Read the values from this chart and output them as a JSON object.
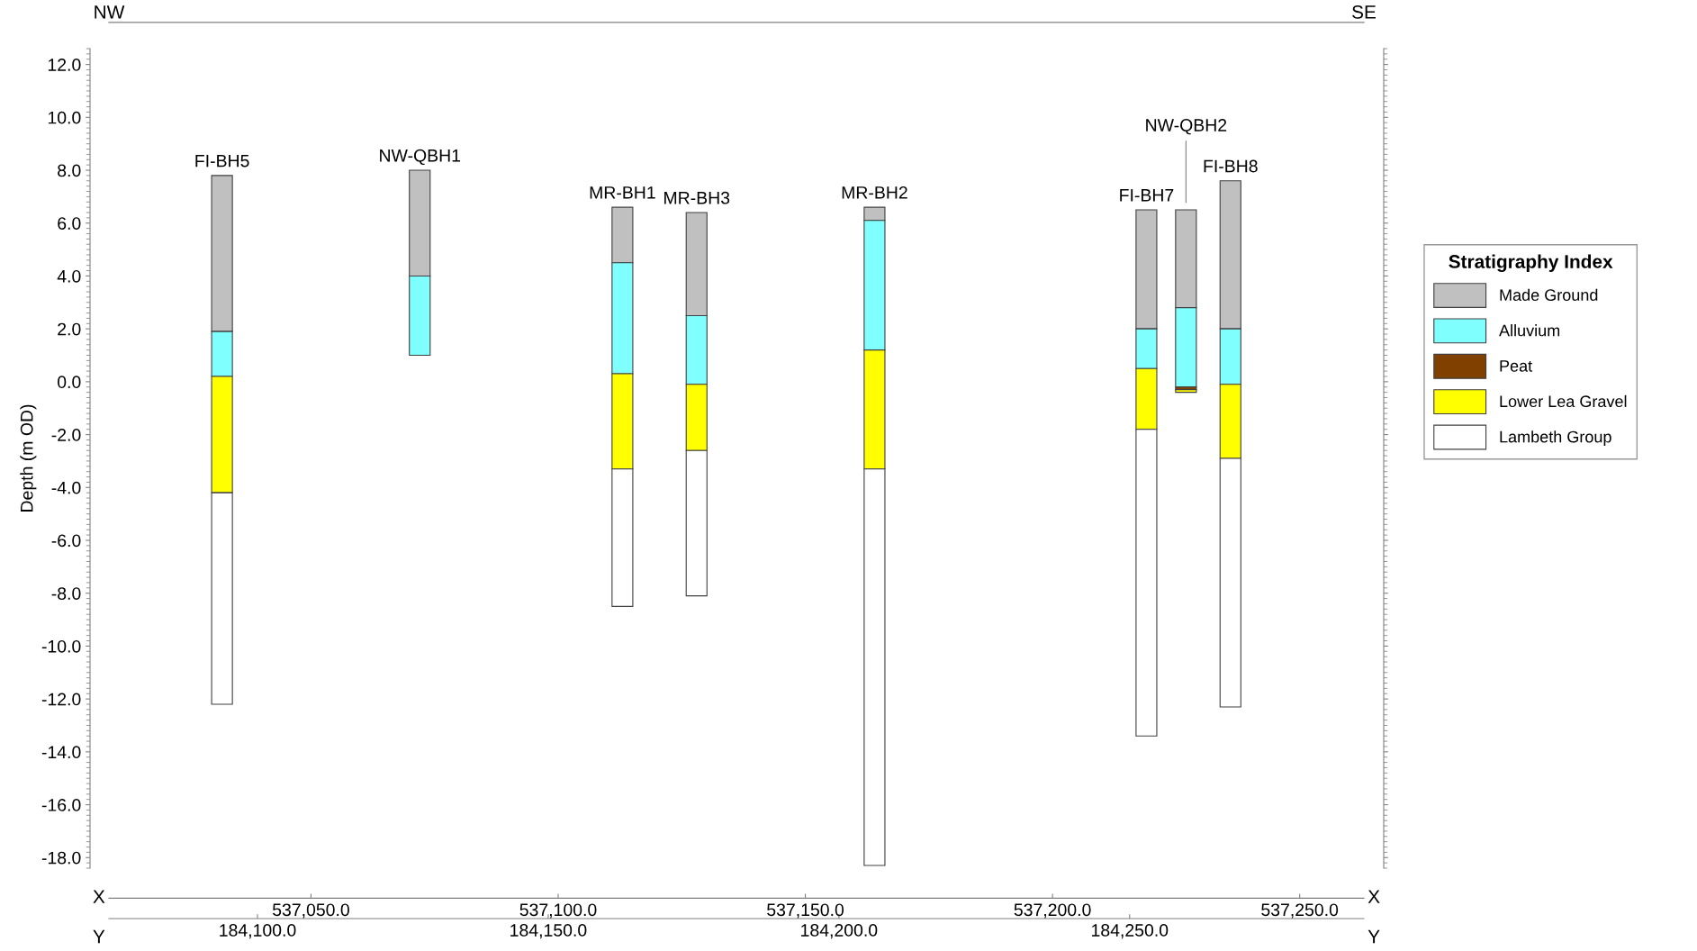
{
  "chart_data": {
    "type": "bar",
    "ylabel": "Depth (m OD)",
    "xlabel": "X",
    "x2label": "Y",
    "x": [
      537032,
      537072,
      537113,
      537128,
      537164,
      537219,
      537227,
      537236
    ],
    "series": [
      {
        "name": "Made Ground",
        "color": "#c0c0c0",
        "base": [
          1.9,
          4.0,
          4.5,
          2.5,
          6.1,
          2.0,
          2.8,
          2.0
        ],
        "values": [
          5.9,
          4.0,
          2.1,
          3.9,
          0.5,
          4.5,
          3.7,
          5.6
        ]
      },
      {
        "name": "Alluvium",
        "color": "#80ffff",
        "base": [
          0.2,
          1.0,
          0.3,
          -0.1,
          1.2,
          0.5,
          -0.2,
          -0.1
        ],
        "values": [
          1.7,
          3.0,
          4.2,
          2.6,
          4.9,
          1.5,
          3.0,
          2.1
        ]
      },
      {
        "name": "Peat",
        "color": "#804000",
        "base": [
          null,
          null,
          null,
          null,
          null,
          null,
          -0.3,
          null
        ],
        "values": [
          null,
          null,
          null,
          null,
          null,
          null,
          0.1,
          null
        ]
      },
      {
        "name": "Lower Lea Gravel",
        "color": "#ffff00",
        "base": [
          -4.2,
          null,
          -3.3,
          -2.6,
          -3.3,
          -1.8,
          -0.4,
          -2.9
        ],
        "values": [
          4.4,
          null,
          3.6,
          2.5,
          4.5,
          2.3,
          0.1,
          2.8
        ]
      },
      {
        "name": "Lambeth Group",
        "color": "#ffffff",
        "base": [
          -12.2,
          null,
          -8.5,
          -8.1,
          -18.3,
          -13.4,
          null,
          -12.3
        ],
        "values": [
          8.0,
          null,
          5.2,
          5.5,
          15.0,
          11.6,
          null,
          9.4
        ]
      }
    ],
    "xlim": [
      537005.3,
      537267
    ],
    "xticks": [
      {
        "value": 537050,
        "label": "537,050.0"
      },
      {
        "value": 537100,
        "label": "537,100.0"
      },
      {
        "value": 537150,
        "label": "537,150.0"
      },
      {
        "value": 537200,
        "label": "537,200.0"
      },
      {
        "value": 537250,
        "label": "537,250.0"
      }
    ],
    "x2lim": [
      184071.2,
      184293.7
    ],
    "x2ticks": [
      {
        "value": 184100,
        "label": "184,100.0"
      },
      {
        "value": 184150,
        "label": "184,150.0"
      },
      {
        "value": 184200,
        "label": "184,200.0"
      },
      {
        "value": 184250,
        "label": "184,250.0"
      }
    ],
    "ylim": [
      -18.4,
      12.6
    ],
    "yticks": [
      {
        "value": -18,
        "label": "-18.0"
      },
      {
        "value": -16,
        "label": "-16.0"
      },
      {
        "value": -14,
        "label": "-14.0"
      },
      {
        "value": -12,
        "label": "-12.0"
      },
      {
        "value": -10,
        "label": "-10.0"
      },
      {
        "value": -8,
        "label": "-8.0"
      },
      {
        "value": -6,
        "label": "-6.0"
      },
      {
        "value": -4,
        "label": "-4.0"
      },
      {
        "value": -2,
        "label": "-2.0"
      },
      {
        "value": 0,
        "label": "0.0"
      },
      {
        "value": 2,
        "label": "2.0"
      },
      {
        "value": 4,
        "label": "4.0"
      },
      {
        "value": 6,
        "label": "6.0"
      },
      {
        "value": 8,
        "label": "8.0"
      },
      {
        "value": 10,
        "label": "10.0"
      },
      {
        "value": 12,
        "label": "12.0"
      }
    ],
    "annotations": [
      {
        "text": "FI-BH5",
        "x": 537032,
        "y": 7.8
      },
      {
        "text": "NW-QBH1",
        "x": 537072,
        "y": 8.0
      },
      {
        "text": "MR-BH1",
        "x": 537113,
        "y": 6.6
      },
      {
        "text": "MR-BH3",
        "x": 537128,
        "y": 6.4
      },
      {
        "text": "MR-BH2",
        "x": 537164,
        "y": 6.6
      },
      {
        "text": "FI-BH7",
        "x": 537219,
        "y": 6.5
      },
      {
        "text": "NW-QBH2",
        "x": 537227,
        "y": 6.5
      },
      {
        "text": "FI-BH8",
        "x": 537236,
        "y": 7.6
      },
      "NW",
      "SE"
    ],
    "legend_title": "Stratigraphy Index",
    "legend": "right",
    "grid": false
  }
}
